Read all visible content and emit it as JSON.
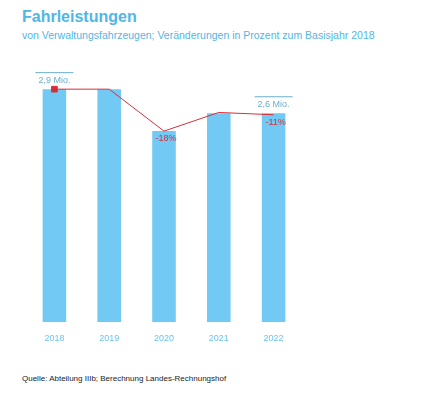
{
  "chart_data": {
    "type": "bar",
    "title": "Fahrleistungen",
    "subtitle": "von Verwaltungsfahrzeugen; Veränderungen in Prozent zum Basisjahr 2018",
    "source": "Quelle: Abteilung IIIb; Berechnung Landes-Rechnungshof",
    "categories": [
      "2018",
      "2019",
      "2020",
      "2021",
      "2022"
    ],
    "series": [
      {
        "type": "bar",
        "color": "#72c9f4",
        "values": [
          2.9,
          2.9,
          2.38,
          2.6,
          2.6
        ],
        "value_labels": [
          "2,9 Mio.",
          null,
          null,
          null,
          "2,6 Mio."
        ]
      },
      {
        "type": "line",
        "axis": "y2",
        "color": "#d4303a",
        "marker": "square",
        "line_style": "solid",
        "values": [
          0,
          0,
          -18,
          -10,
          -11
        ],
        "value_labels": [
          null,
          null,
          "-18%",
          null,
          "-11%"
        ]
      }
    ],
    "ylim": [
      0,
      3.3
    ],
    "y2lim": [
      -100,
      13.8
    ],
    "tick_labels": "x",
    "grid": false,
    "data_labels": true
  }
}
